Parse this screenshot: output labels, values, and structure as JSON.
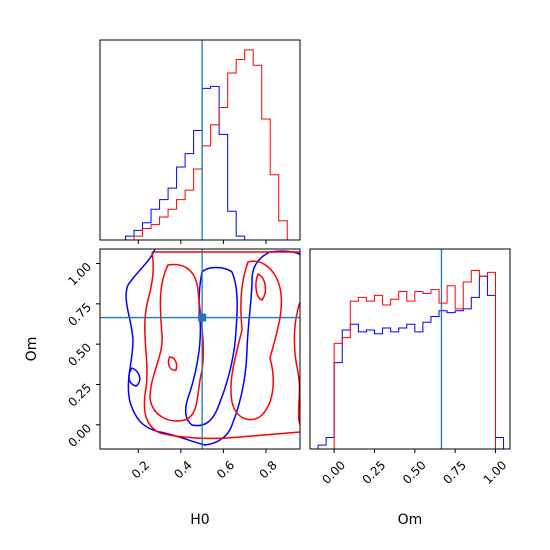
{
  "chart_data": {
    "type": "corner",
    "parameters": [
      "H0",
      "Om"
    ],
    "truth": {
      "H0": 0.5,
      "Om": 0.665
    },
    "series": [
      {
        "color": "#0000ff"
      },
      {
        "color": "#ff0000"
      }
    ],
    "truth_color": "#1f77b4",
    "panels": [
      {
        "id": "hist_H0",
        "type": "step-histogram",
        "xlim": [
          0.02,
          0.96
        ],
        "x_ticks": [
          0.2,
          0.4,
          0.6,
          0.8
        ],
        "show_tick_labels": false,
        "bin_edges": [
          0.14,
          0.18,
          0.22,
          0.26,
          0.3,
          0.34,
          0.38,
          0.42,
          0.46,
          0.5,
          0.54,
          0.58,
          0.62,
          0.66,
          0.7,
          0.74,
          0.78,
          0.82,
          0.86,
          0.9,
          0.94,
          0.98
        ],
        "series_values": [
          [
            0.02,
            0.05,
            0.09,
            0.16,
            0.21,
            0.27,
            0.38,
            0.45,
            0.57,
            0.79,
            0.8,
            0.55,
            0.15,
            0.02,
            0.0,
            0.0,
            0.0,
            0.0,
            0.0,
            0.0,
            0.0
          ],
          [
            0.0,
            0.02,
            0.06,
            0.08,
            0.12,
            0.16,
            0.21,
            0.26,
            0.37,
            0.49,
            0.6,
            0.69,
            0.87,
            0.94,
            0.99,
            0.91,
            0.63,
            0.34,
            0.1,
            0.0,
            0.0
          ]
        ]
      },
      {
        "id": "scatter_H0_Om",
        "type": "contour",
        "xlim": [
          0.02,
          0.96
        ],
        "ylim": [
          -0.15,
          1.09
        ],
        "x_ticks": [
          0.2,
          0.4,
          0.6,
          0.8
        ],
        "x_tick_labels": [
          "0.2",
          "0.4",
          "0.6",
          "0.8"
        ],
        "y_ticks": [
          0.0,
          0.25,
          0.5,
          0.75,
          1.0
        ],
        "y_tick_labels": [
          "0.00",
          "0.25",
          "0.50",
          "0.75",
          "1.00"
        ],
        "xlabel": "H0",
        "ylabel": "Om"
      },
      {
        "id": "hist_Om",
        "type": "step-histogram",
        "xlim": [
          -0.15,
          1.09
        ],
        "x_ticks": [
          0.0,
          0.25,
          0.5,
          0.75,
          1.0
        ],
        "x_tick_labels": [
          "0.00",
          "0.25",
          "0.50",
          "0.75",
          "1.00"
        ],
        "xlabel": "Om",
        "bin_edges": [
          -0.1,
          -0.05,
          0.0,
          0.05,
          0.1,
          0.15,
          0.2,
          0.25,
          0.3,
          0.35,
          0.4,
          0.45,
          0.5,
          0.55,
          0.6,
          0.65,
          0.7,
          0.75,
          0.8,
          0.85,
          0.9,
          0.95,
          1.0,
          1.05
        ],
        "series_values": [
          [
            0.02,
            0.06,
            0.45,
            0.62,
            0.65,
            0.61,
            0.62,
            0.6,
            0.63,
            0.61,
            0.63,
            0.65,
            0.61,
            0.66,
            0.69,
            0.72,
            0.71,
            0.72,
            0.73,
            0.79,
            0.9,
            0.8,
            0.06
          ],
          [
            0.0,
            0.0,
            0.55,
            0.58,
            0.77,
            0.79,
            0.77,
            0.8,
            0.75,
            0.78,
            0.82,
            0.77,
            0.82,
            0.81,
            0.83,
            0.76,
            0.85,
            0.73,
            0.87,
            0.93,
            0.9,
            0.92,
            0.0
          ]
        ]
      }
    ]
  }
}
